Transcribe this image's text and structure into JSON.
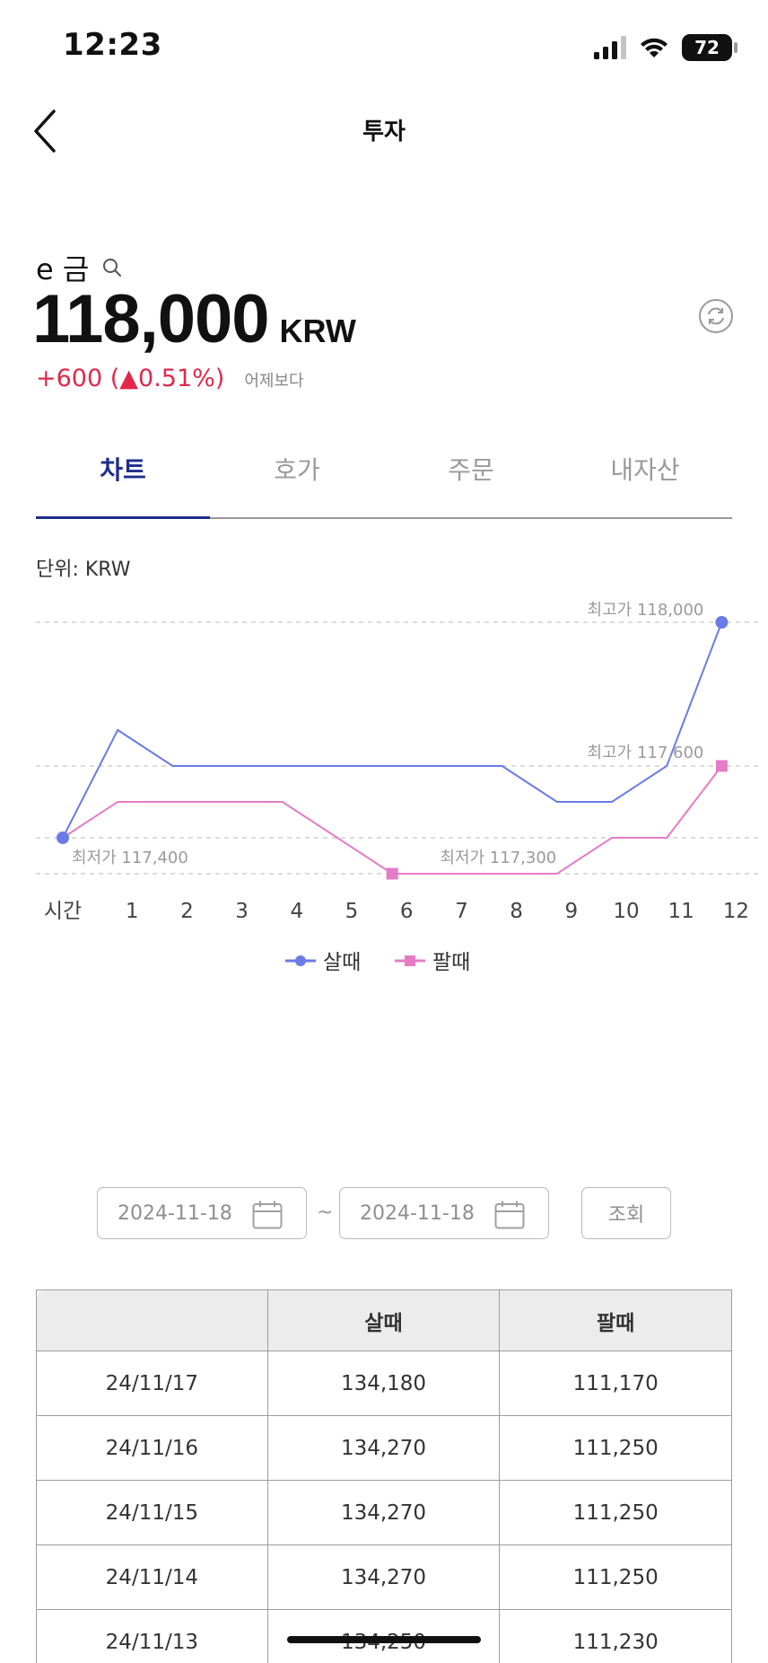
{
  "status": {
    "time": "12:23",
    "battery": "72",
    "icons": [
      "signal-icon",
      "wifi-icon",
      "battery-icon"
    ]
  },
  "nav": {
    "title": "투자",
    "back_icon": "chevron-left-icon"
  },
  "asset": {
    "name": "e 금",
    "price": "118,000",
    "unit": "KRW",
    "change": "+600 (▲0.51%)",
    "change_label": "어제보다",
    "change_color": "#e0284b"
  },
  "tabs": [
    {
      "label": "차트",
      "active": true
    },
    {
      "label": "호가",
      "active": false
    },
    {
      "label": "주문",
      "active": false
    },
    {
      "label": "내자산",
      "active": false
    }
  ],
  "chart_unit": "단위: KRW",
  "chart_data": {
    "type": "line",
    "x_title": "시간",
    "x": [
      0,
      1,
      2,
      3,
      4,
      5,
      6,
      7,
      8,
      9,
      10,
      11,
      12
    ],
    "x_labels": [
      "1",
      "2",
      "3",
      "4",
      "5",
      "6",
      "7",
      "8",
      "9",
      "10",
      "11",
      "12"
    ],
    "ylim": [
      117300,
      118000
    ],
    "series": [
      {
        "name": "살때",
        "color": "#6a7be6",
        "marker": "circle",
        "values": [
          117400,
          117700,
          117600,
          117600,
          117600,
          117600,
          117600,
          117600,
          117600,
          117500,
          117500,
          117600,
          118000
        ]
      },
      {
        "name": "팔때",
        "color": "#e57cc7",
        "marker": "square",
        "values": [
          117400,
          117500,
          117500,
          117500,
          117500,
          117400,
          117300,
          117300,
          117300,
          117300,
          117400,
          117400,
          117600
        ]
      }
    ],
    "annotations": [
      {
        "text": "최고가 118,000"
      },
      {
        "text": "최고가 117,600"
      },
      {
        "text": "최저가 117,400"
      },
      {
        "text": "최저가 117,300"
      }
    ],
    "grid": "dashed-horizontal",
    "legend": "bottom-center"
  },
  "filter": {
    "start_date": "2024-11-18",
    "end_date": "2024-11-18",
    "separator": "~",
    "search_label": "조회"
  },
  "table": {
    "headers": [
      "",
      "살때",
      "팔때"
    ],
    "rows": [
      [
        "24/11/17",
        "134,180",
        "111,170"
      ],
      [
        "24/11/16",
        "134,270",
        "111,250"
      ],
      [
        "24/11/15",
        "134,270",
        "111,250"
      ],
      [
        "24/11/14",
        "134,270",
        "111,250"
      ],
      [
        "24/11/13",
        "134,250",
        "111,230"
      ]
    ]
  }
}
